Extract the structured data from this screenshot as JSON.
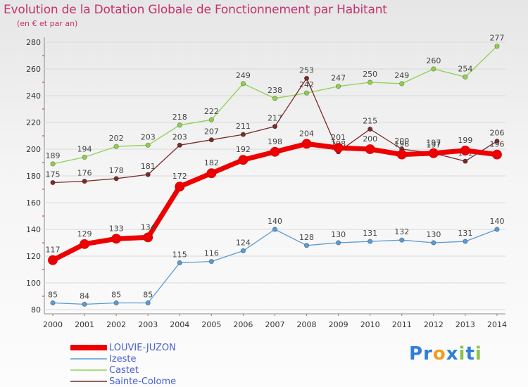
{
  "chart_data": {
    "type": "line",
    "title": "Evolution de la Dotation Globale de Fonctionnement par Habitant",
    "subtitle": "(en € et par an)",
    "xlabel": "",
    "ylabel": "",
    "x": [
      "2000",
      "2001",
      "2002",
      "2003",
      "2004",
      "2005",
      "2006",
      "2007",
      "2008",
      "2009",
      "2010",
      "2011",
      "2012",
      "2013",
      "2014"
    ],
    "ylim": [
      80,
      280
    ],
    "yticks": [
      80,
      100,
      120,
      140,
      160,
      180,
      200,
      220,
      240,
      260,
      280
    ],
    "grid": "horizontal",
    "legend_position": "bottom-left",
    "series": [
      {
        "name": "LOUVIE-JUZON",
        "color": "#ee0000",
        "emphasis": true,
        "values": [
          117,
          129,
          133,
          134,
          172,
          182,
          192,
          198,
          204,
          201,
          200,
          196,
          197,
          199,
          196
        ]
      },
      {
        "name": "Izeste",
        "color": "#5b9bd5",
        "emphasis": false,
        "values": [
          85,
          84,
          85,
          85,
          115,
          116,
          124,
          140,
          128,
          130,
          131,
          132,
          130,
          131,
          140
        ]
      },
      {
        "name": "Castet",
        "color": "#8fd14f",
        "emphasis": false,
        "values": [
          189,
          194,
          202,
          203,
          218,
          222,
          249,
          238,
          242,
          247,
          250,
          249,
          260,
          254,
          277
        ]
      },
      {
        "name": "Sainte-Colome",
        "color": "#7a2a2a",
        "emphasis": false,
        "values": [
          175,
          176,
          178,
          181,
          203,
          207,
          211,
          217,
          253,
          198,
          215,
          200,
          197,
          191,
          206
        ]
      }
    ]
  },
  "logo": {
    "letters": [
      "P",
      "r",
      "o",
      "x",
      "i",
      "t",
      "i"
    ],
    "colors": [
      "#2f7fd6",
      "#2f7fd6",
      "#f39c1f",
      "#2f7fd6",
      "#8bc34a",
      "#2f7fd6",
      "#8bc34a"
    ]
  }
}
